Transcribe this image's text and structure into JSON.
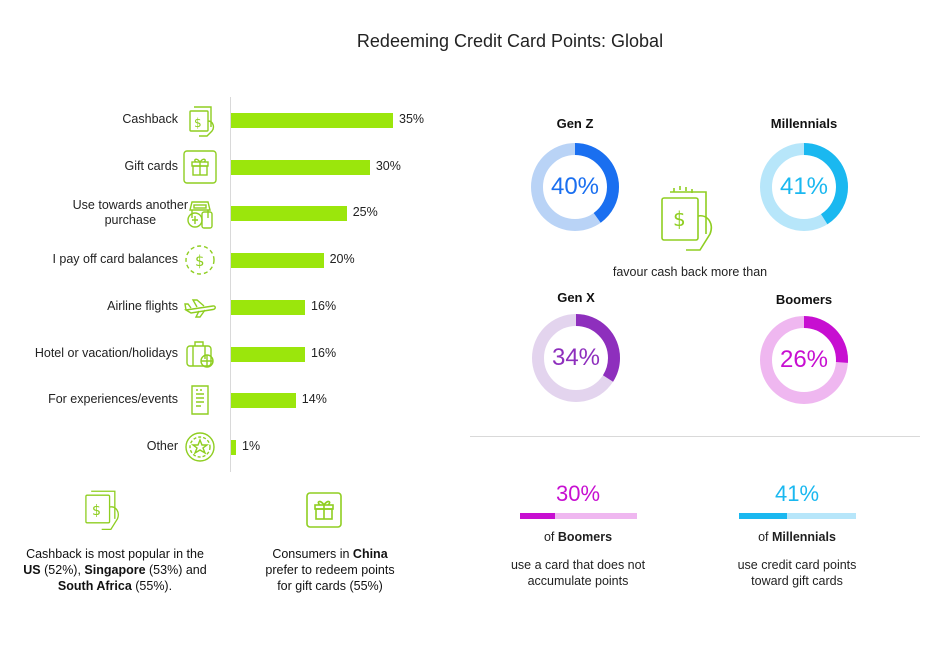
{
  "title": "Redeeming Credit Card Points: Global",
  "colors": {
    "bar": "#9be60c",
    "icon": "#8fce21",
    "track": "#d9d9d9"
  },
  "chart_data": {
    "type": "bar",
    "orientation": "horizontal",
    "categories": [
      "Cashback",
      "Gift cards",
      "Use towards another purchase",
      "I pay off card balances",
      "Airline flights",
      "Hotel or vacation/holidays",
      "For experiences/events",
      "Other"
    ],
    "values": [
      35,
      30,
      25,
      20,
      16,
      16,
      14,
      1
    ],
    "value_labels": [
      "35%",
      "30%",
      "25%",
      "20%",
      "16%",
      "16%",
      "14%",
      "1%"
    ],
    "icons": [
      "money-hand-icon",
      "gift-icon",
      "shopping-icon",
      "dollar-coin-icon",
      "airplane-icon",
      "suitcase-icon",
      "ticket-icon",
      "star-badge-icon"
    ],
    "xlim": [
      0,
      35
    ]
  },
  "label_lines": {
    "purchase": [
      "Use towards another",
      "purchase"
    ]
  },
  "generations": [
    {
      "name": "Gen Z",
      "value": 40,
      "label": "40%",
      "color": "#1a6ff0",
      "track": "#b9d3f6"
    },
    {
      "name": "Millennials",
      "value": 41,
      "label": "41%",
      "color": "#1ab8f0",
      "track": "#b7e6fa"
    },
    {
      "name": "Gen X",
      "value": 34,
      "label": "34%",
      "color": "#8e2fbd",
      "track": "#e3d4ee"
    },
    {
      "name": "Boomers",
      "value": 26,
      "label": "26%",
      "color": "#c70fd1",
      "track": "#efb7f0"
    }
  ],
  "donut_caption": "favour cash back more than",
  "stats": [
    {
      "pct_label": "30%",
      "value": 30,
      "of_prefix": "of ",
      "group": "Boomers",
      "desc": [
        "use a card that does not",
        "accumulate points"
      ],
      "color": "#c70fd1",
      "track": "#efb7f0"
    },
    {
      "pct_label": "41%",
      "value": 41,
      "of_prefix": "of ",
      "group": "Millennials",
      "desc": [
        "use credit card points",
        "toward gift cards"
      ],
      "color": "#1ab8f0",
      "track": "#b7e6fa"
    }
  ],
  "notes": {
    "cashback": {
      "line1": "Cashback is most popular in the",
      "us": "US",
      "us_val": " (52%), ",
      "sg": "Singapore",
      "sg_val": " (53%) and",
      "za": "South Africa",
      "za_val": " (55%)."
    },
    "china": {
      "prefix": "Consumers in ",
      "country": "China",
      "line2": "prefer to redeem points",
      "line3": "for gift cards (55%)"
    }
  }
}
